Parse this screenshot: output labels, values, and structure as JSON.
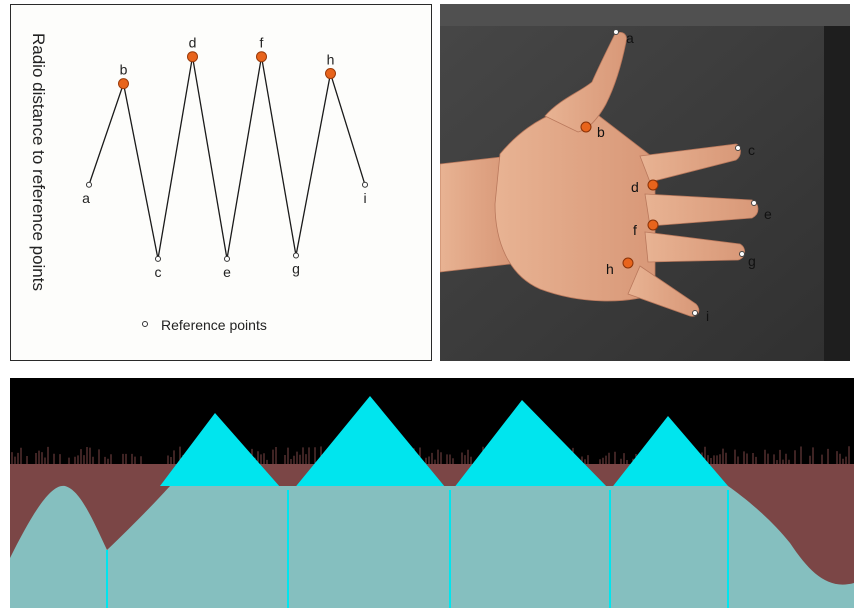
{
  "chart_panel": {
    "ylabel": "Radio distance to reference points",
    "legend": "Reference points",
    "points": [
      {
        "label": "a",
        "value": 0.52,
        "kind": "reference"
      },
      {
        "label": "b",
        "value": 0.82,
        "kind": "highlight"
      },
      {
        "label": "c",
        "value": 0.3,
        "kind": "reference"
      },
      {
        "label": "d",
        "value": 0.9,
        "kind": "highlight"
      },
      {
        "label": "e",
        "value": 0.3,
        "kind": "reference"
      },
      {
        "label": "f",
        "value": 0.9,
        "kind": "highlight"
      },
      {
        "label": "g",
        "value": 0.31,
        "kind": "reference"
      },
      {
        "label": "h",
        "value": 0.85,
        "kind": "highlight"
      },
      {
        "label": "i",
        "value": 0.52,
        "kind": "reference"
      }
    ]
  },
  "hand_panel": {
    "points": [
      {
        "label": "a",
        "kind": "reference"
      },
      {
        "label": "b",
        "kind": "highlight"
      },
      {
        "label": "c",
        "kind": "reference"
      },
      {
        "label": "d",
        "kind": "highlight"
      },
      {
        "label": "e",
        "kind": "reference"
      },
      {
        "label": "f",
        "kind": "highlight"
      },
      {
        "label": "g",
        "kind": "reference"
      },
      {
        "label": "h",
        "kind": "highlight"
      },
      {
        "label": "i",
        "kind": "reference"
      }
    ]
  },
  "profile_panel": {
    "colors": {
      "background": "#000000",
      "finger_fill": "#00e5ee",
      "palm_fill": "#85bfbf",
      "edge_fill": "#7b4646"
    }
  },
  "colors": {
    "highlight_point": "#e8641c",
    "reference_point": "#ffffff",
    "line": "#1a1a1a"
  }
}
